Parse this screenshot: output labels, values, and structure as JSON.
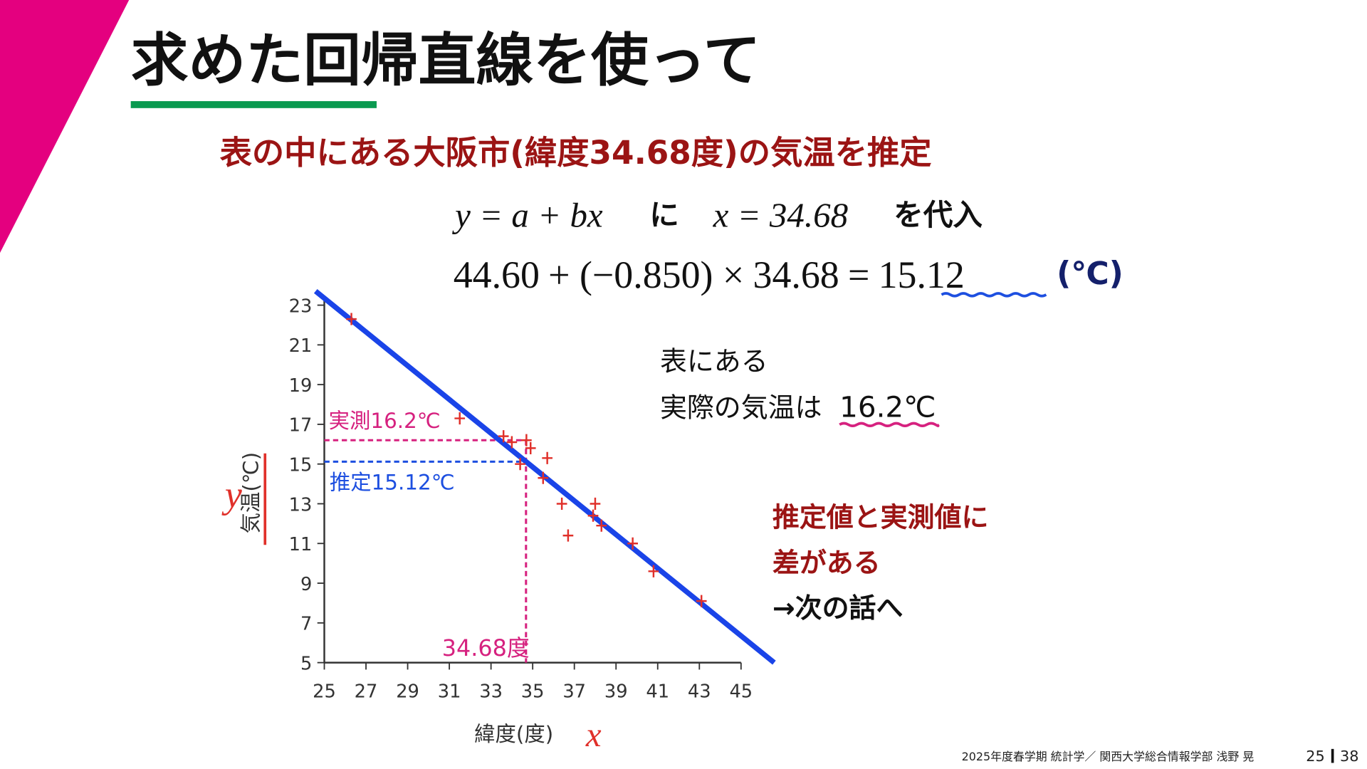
{
  "title": "求めた回帰直線を使って",
  "subtitle": "表の中にある大阪市(緯度34.68度)の気温を推定",
  "equation": {
    "model": "y = a + bx",
    "particle": "に",
    "assign": "x = 34.68",
    "tail": "を代入"
  },
  "formula": {
    "a": {
      "value": 44.6,
      "label": "44.60"
    },
    "b": {
      "value": -0.85,
      "label": "−0.850"
    },
    "x": {
      "value": 34.68,
      "label": "34.68"
    },
    "y": {
      "value": 15.12,
      "label": "15.12"
    },
    "ops": [
      "+ (",
      ") ×",
      "="
    ],
    "unit": "(℃)"
  },
  "note": {
    "line1": "表にある",
    "line2": "実際の気温は",
    "value": "16.2℃"
  },
  "remark": {
    "line1": "推定値と実測値に",
    "line2": "差がある",
    "line3": "→次の話へ"
  },
  "footer": {
    "text": "2025年度春学期  統計学／  関西大学総合情報学部  浅野  晃",
    "page": "25",
    "total": "38"
  },
  "chart_data": {
    "type": "scatter",
    "x_label": "緯度(度)",
    "x_symbol": "x",
    "y_label": "気温(℃)",
    "y_symbol": "y",
    "x": [
      26.3,
      31.5,
      33.6,
      34.0,
      34.7,
      34.9,
      34.4,
      35.7,
      35.5,
      36.4,
      36.7,
      38.0,
      37.9,
      38.3,
      39.8,
      40.8,
      43.1
    ],
    "y": [
      22.3,
      17.3,
      16.4,
      16.1,
      16.2,
      15.8,
      15.0,
      15.3,
      14.3,
      13.0,
      11.4,
      13.0,
      12.4,
      11.9,
      11.0,
      9.6,
      8.1
    ],
    "color": "#e0302a",
    "line_color": "#1a44e8",
    "xlim": [
      25,
      45
    ],
    "xticks": [
      25,
      27,
      29,
      31,
      33,
      35,
      37,
      39,
      41,
      43,
      45
    ],
    "ylim": [
      5,
      23
    ],
    "yticks": [
      5,
      7,
      9,
      11,
      13,
      15,
      17,
      19,
      21,
      23
    ],
    "measured": {
      "value": 16.2,
      "label": "実測16.2℃",
      "color": "#d6217f"
    },
    "estimate_label": "推定15.12℃",
    "estimate_color": "#1d4fe0",
    "x_marker_label": "34.68度"
  }
}
